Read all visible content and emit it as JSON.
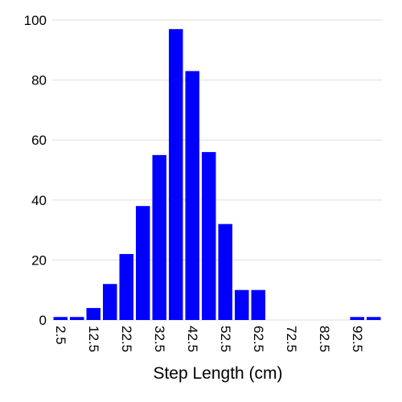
{
  "chart_data": {
    "type": "bar",
    "title": "",
    "xlabel": "Step Length (cm)",
    "ylabel": "",
    "x": [
      2.5,
      7.5,
      12.5,
      17.5,
      22.5,
      27.5,
      32.5,
      37.5,
      42.5,
      47.5,
      52.5,
      57.5,
      62.5,
      67.5,
      72.5,
      77.5,
      82.5,
      87.5,
      92.5,
      97.5
    ],
    "values": [
      1,
      1,
      4,
      12,
      22,
      38,
      55,
      97,
      83,
      56,
      32,
      10,
      10,
      0,
      0,
      0,
      0,
      0,
      1,
      1
    ],
    "bar_width": 5,
    "xlim": [
      0,
      100
    ],
    "ylim": [
      0,
      100
    ],
    "x_ticks": [
      2.5,
      12.5,
      22.5,
      32.5,
      42.5,
      52.5,
      62.5,
      72.5,
      82.5,
      92.5
    ],
    "x_tick_labels": [
      "2.5",
      "12.5",
      "22.5",
      "32.5",
      "42.5",
      "52.5",
      "62.5",
      "72.5",
      "82.5",
      "92.5"
    ],
    "y_ticks": [
      0,
      20,
      40,
      60,
      80,
      100
    ],
    "y_tick_labels": [
      "0",
      "20",
      "40",
      "60",
      "80",
      "100"
    ],
    "bar_color": "#0000ff",
    "grid": "y",
    "grid_color": "#dddddd",
    "legend": "none"
  }
}
